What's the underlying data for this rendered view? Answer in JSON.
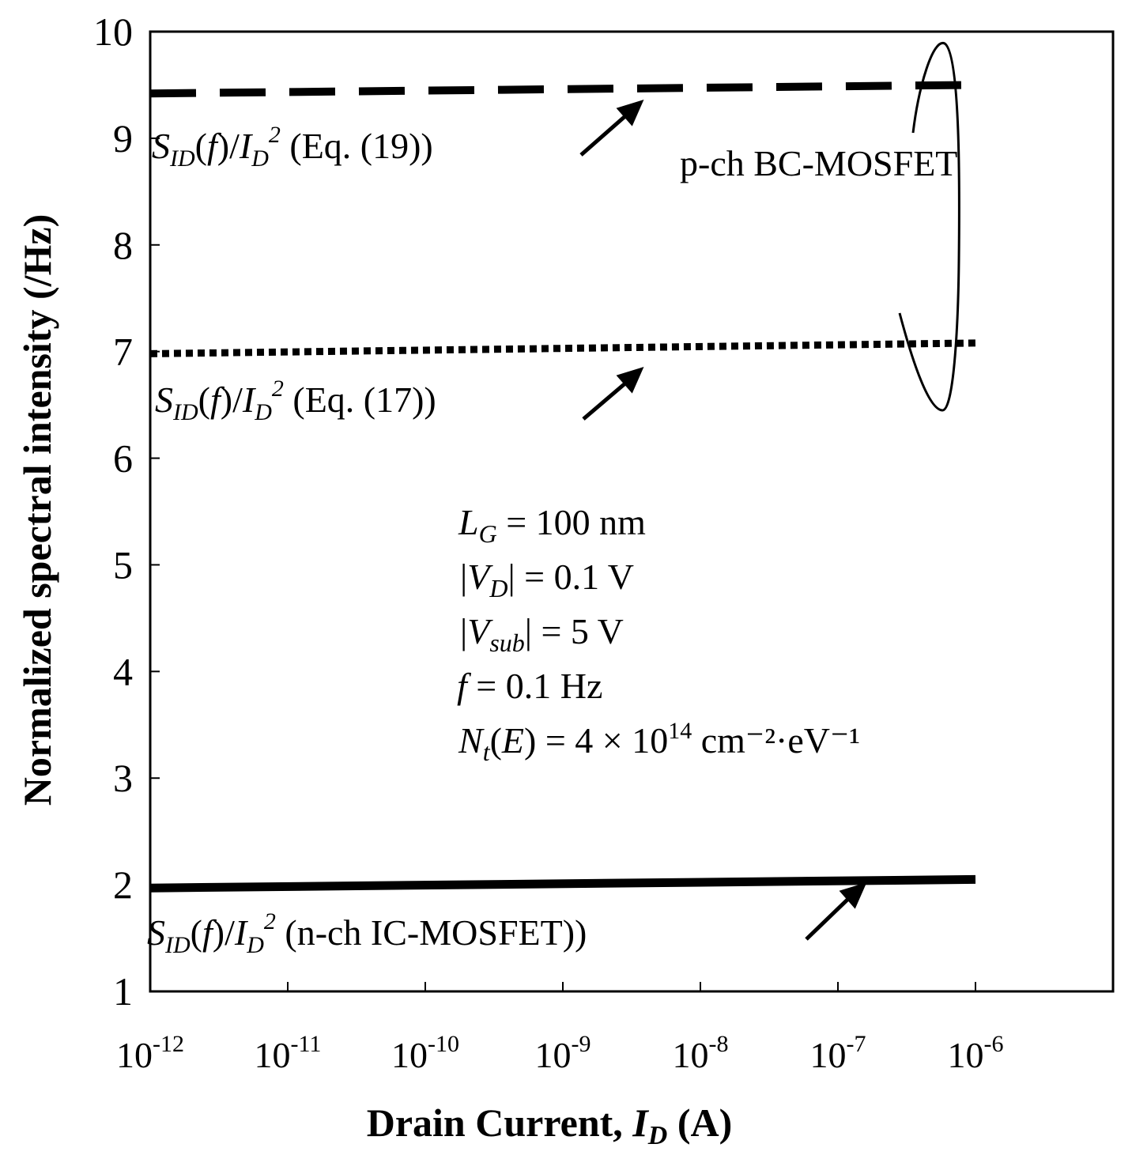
{
  "chart_data": {
    "type": "line",
    "x_scale": "log",
    "x_tick_base": "10",
    "x_tick_exponents": [
      "-12",
      "-11",
      "-10",
      "-9",
      "-8",
      "-7",
      "-6"
    ],
    "xlim": [
      1e-12,
      1e-05
    ],
    "ylim": [
      1,
      10
    ],
    "y_ticks": [
      "1",
      "2",
      "3",
      "4",
      "5",
      "6",
      "7",
      "8",
      "9",
      "10"
    ],
    "grid": false,
    "xlabel": {
      "main": "Drain Current, ",
      "var": "I",
      "sub": "D",
      "unit": " (A)"
    },
    "ylabel": "Normalized spectral intensity (/Hz)",
    "series": [
      {
        "label_suffix": " (Eq. (19))",
        "style": "dashed",
        "x": [
          1e-12,
          1e-06
        ],
        "y": [
          9.42,
          9.5
        ]
      },
      {
        "label_suffix": " (Eq. (17))",
        "style": "dotted",
        "x": [
          1e-12,
          1e-06
        ],
        "y": [
          6.98,
          7.08
        ]
      },
      {
        "label_suffix": " (n-ch IC-MOSFET))",
        "style": "solid",
        "x": [
          1e-12,
          1e-06
        ],
        "y": [
          1.97,
          2.05
        ]
      }
    ],
    "group_label": "p-ch BC-MOSFET",
    "parameters": [
      {
        "var": "L",
        "sub": "G",
        "rest": " = 100 nm"
      },
      {
        "pre": "|",
        "var": "V",
        "sub": "D",
        "rest": "| = 0.1 V"
      },
      {
        "pre": "|",
        "var": "V",
        "sub": "sub",
        "rest": "| = 5 V"
      },
      {
        "var": "f",
        "rest": " = 0.1 Hz"
      },
      {
        "var": "N",
        "sub": "t",
        "paren_var": "E",
        "rest": " = 4 × 10",
        "sup": "14",
        "unit": " cm⁻²·eV⁻¹"
      }
    ],
    "series_label_parts": {
      "s": "S",
      "s_sub": "ID",
      "f": "f",
      "i": "I",
      "i_sub": "D",
      "i_sup": "2"
    }
  }
}
